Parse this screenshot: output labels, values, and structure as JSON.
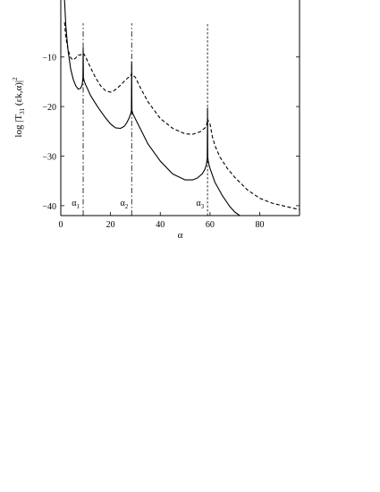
{
  "chart_data": {
    "type": "line",
    "xlabel": "α",
    "ylabel": "log |T31(εk,α)|²",
    "ylabel_parts": {
      "pre": "log |T",
      "sub": "31",
      "mid": " (εk,α)|",
      "sup": "2"
    },
    "xlim": [
      0,
      96
    ],
    "ylim": [
      -42,
      1.5
    ],
    "x_ticks": [
      0,
      20,
      40,
      60,
      80
    ],
    "x_tick_labels": [
      "0",
      "20",
      "40",
      "60",
      "80"
    ],
    "y_ticks": [
      -10,
      -20,
      -30,
      -40
    ],
    "y_tick_labels": [
      "−10",
      "−20",
      "−30",
      "−40"
    ],
    "grid": false,
    "legend": "none",
    "markers": [
      {
        "x": 9,
        "label_main": "α",
        "label_sub": "1",
        "style": "dash-dot"
      },
      {
        "x": 28.5,
        "label_main": "α",
        "label_sub": "2",
        "style": "dash-dot"
      },
      {
        "x": 59,
        "label_main": "α",
        "label_sub": "3",
        "style": "dashed"
      }
    ],
    "series": [
      {
        "style": "solid",
        "x": [
          1.5,
          2,
          2.5,
          3,
          4,
          5,
          6,
          7,
          8,
          8.6,
          8.9,
          9,
          9.1,
          9.5,
          10,
          12,
          15,
          18,
          20,
          22,
          24,
          25.5,
          26.5,
          27.5,
          28,
          28.4,
          28.5,
          28.6,
          29,
          30,
          32,
          35,
          40,
          45,
          50,
          53,
          55,
          57,
          58,
          58.6,
          58.9,
          59,
          59.1,
          59.5,
          60,
          62,
          65,
          68,
          70,
          72
        ],
        "y": [
          1.5,
          -3.5,
          -6.5,
          -9,
          -12.5,
          -14.5,
          -15.8,
          -16.5,
          -16.3,
          -15.6,
          -14.2,
          -8.2,
          -14.2,
          -15,
          -15.6,
          -17.8,
          -20.2,
          -22.3,
          -23.5,
          -24.3,
          -24.4,
          -24,
          -23.3,
          -22.3,
          -21.6,
          -20.8,
          -11,
          -20.8,
          -21.5,
          -22.5,
          -24.5,
          -27.5,
          -31,
          -33.6,
          -34.8,
          -34.8,
          -34.4,
          -33.5,
          -32.6,
          -31.6,
          -30.3,
          -20.3,
          -30.3,
          -31.5,
          -32.5,
          -35.3,
          -38,
          -40.2,
          -41.3,
          -42
        ]
      },
      {
        "style": "dashed",
        "x": [
          1.5,
          2,
          3,
          4,
          5,
          6,
          7,
          8,
          8.7,
          9,
          9.3,
          10,
          12,
          14,
          16,
          18,
          20,
          22,
          24,
          25.5,
          27,
          28,
          28.5,
          29,
          30,
          32,
          35,
          40,
          45,
          50,
          53,
          56,
          58,
          58.7,
          59,
          59.3,
          60,
          61,
          62,
          64,
          67,
          70,
          75,
          80,
          85,
          90,
          96
        ],
        "y": [
          -3,
          -6,
          -8.7,
          -10.2,
          -10.6,
          -10.2,
          -9.6,
          -9.6,
          -9.2,
          -9.3,
          -9.4,
          -10,
          -12.2,
          -14.2,
          -15.8,
          -16.8,
          -17.1,
          -16.6,
          -15.7,
          -14.9,
          -14.2,
          -13.9,
          -13.3,
          -13.7,
          -14.1,
          -16.2,
          -19,
          -22.4,
          -24.4,
          -25.5,
          -25.6,
          -25.1,
          -24.3,
          -23.6,
          -22.5,
          -22.9,
          -23.5,
          -26.2,
          -27.9,
          -30.2,
          -32.5,
          -34.3,
          -36.8,
          -38.5,
          -39.5,
          -40.1,
          -40.8
        ]
      }
    ]
  }
}
